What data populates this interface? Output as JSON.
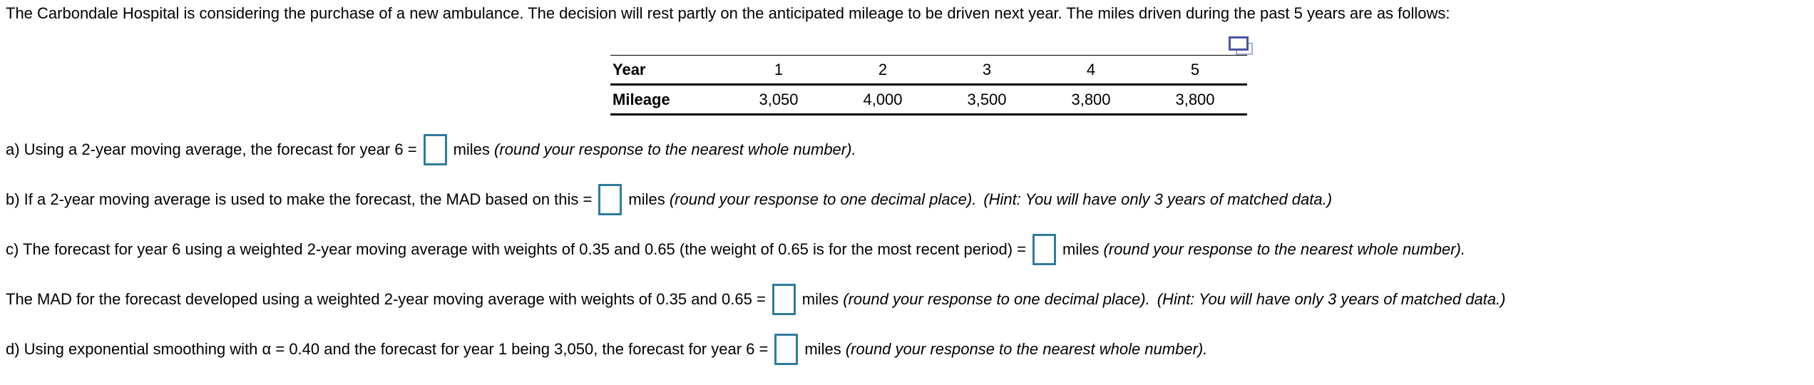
{
  "intro": "The Carbondale Hospital is considering the purchase of a new ambulance. The decision will rest partly on the anticipated mileage to be driven next year. The miles driven during the past 5 years are as follows:",
  "table": {
    "header_label": "Year",
    "row_label": "Mileage",
    "years": [
      "1",
      "2",
      "3",
      "4",
      "5"
    ],
    "mileage": [
      "3,050",
      "4,000",
      "3,500",
      "3,800",
      "3,800"
    ]
  },
  "questions": [
    {
      "id": "a",
      "before": "a) Using a 2-year moving average, the forecast for year 6 =",
      "value": "",
      "after": "miles",
      "round": "(round your response to the nearest whole number)."
    },
    {
      "id": "b",
      "before": "b) If a 2-year moving average is used to make the forecast, the MAD based on this =",
      "value": "",
      "after": "miles",
      "round": "(round your response to one decimal place).",
      "hint": "(Hint: You will have only 3 years of matched data.)"
    },
    {
      "id": "c",
      "before": "c) The forecast for year 6 using a weighted 2-year moving average with weights of 0.35 and 0.65 (the weight of 0.65 is for the most recent period) =",
      "value": "",
      "after": "miles",
      "round": "(round your response to the nearest whole number)."
    },
    {
      "id": "mad",
      "before": "The MAD for the forecast developed using a weighted 2-year moving average with weights of 0.35 and 0.65 =",
      "value": "",
      "after": "miles",
      "round": "(round your response to one decimal place).",
      "hint": "(Hint: You will have only 3 years of matched data.)"
    },
    {
      "id": "d",
      "before": "d) Using exponential smoothing with α = 0.40 and the forecast for year 1 being 3,050, the forecast for year 6 =",
      "value": "",
      "after": "miles",
      "round": "(round your response to the nearest whole number)."
    }
  ],
  "colors": {
    "answer_box_border": "#2e7c9e",
    "icon_front": "#4a55a2",
    "icon_back": "#a9aed8",
    "table_border": "#000000"
  }
}
